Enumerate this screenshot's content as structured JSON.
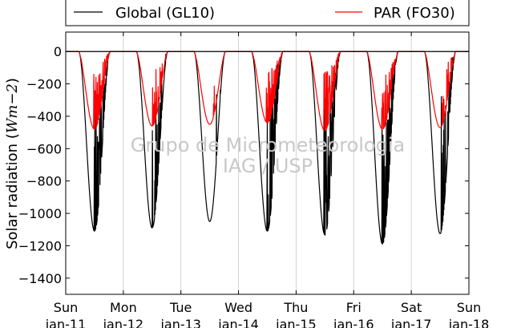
{
  "chart_data": {
    "type": "line",
    "ylabel_text": "Solar radiation (",
    "ylabel_unit": "Wm−2",
    "ylabel_close": ")",
    "ylim": [
      -1500,
      120
    ],
    "yticks": [
      0,
      -200,
      -400,
      -600,
      -800,
      -1000,
      -1200,
      -1400
    ],
    "xlim": [
      0,
      7
    ],
    "xticks": [
      {
        "x": 0,
        "day": "Sun",
        "date": "jan-11"
      },
      {
        "x": 1,
        "day": "Mon",
        "date": "jan-12"
      },
      {
        "x": 2,
        "day": "Tue",
        "date": "jan-13"
      },
      {
        "x": 3,
        "day": "Wed",
        "date": "jan-14"
      },
      {
        "x": 4,
        "day": "Thu",
        "date": "jan-15"
      },
      {
        "x": 5,
        "day": "Fri",
        "date": "jan-16"
      },
      {
        "x": 6,
        "day": "Sat",
        "date": "jan-17"
      },
      {
        "x": 7,
        "day": "Sun",
        "date": "jan-18"
      }
    ],
    "grid": "vertical",
    "legend_position": "top",
    "series": [
      {
        "name": "Global (GL10)",
        "color": "#000000",
        "daily_min": [
          -1110,
          -1090,
          -1050,
          -1110,
          -1135,
          -1190,
          -1125
        ],
        "daily_cloudiness": [
          0.85,
          0.55,
          0.1,
          0.6,
          0.9,
          0.95,
          0.4
        ]
      },
      {
        "name": "PAR (FO30)",
        "color": "#ff0000",
        "daily_min": [
          -480,
          -460,
          -450,
          -440,
          -490,
          -480,
          -470
        ],
        "daily_cloudiness": [
          0.85,
          0.55,
          0.1,
          0.6,
          0.9,
          0.95,
          0.4
        ]
      }
    ]
  },
  "watermark": {
    "line1": "Grupo de Micrometeorologia",
    "line2": "IAG / USP"
  }
}
